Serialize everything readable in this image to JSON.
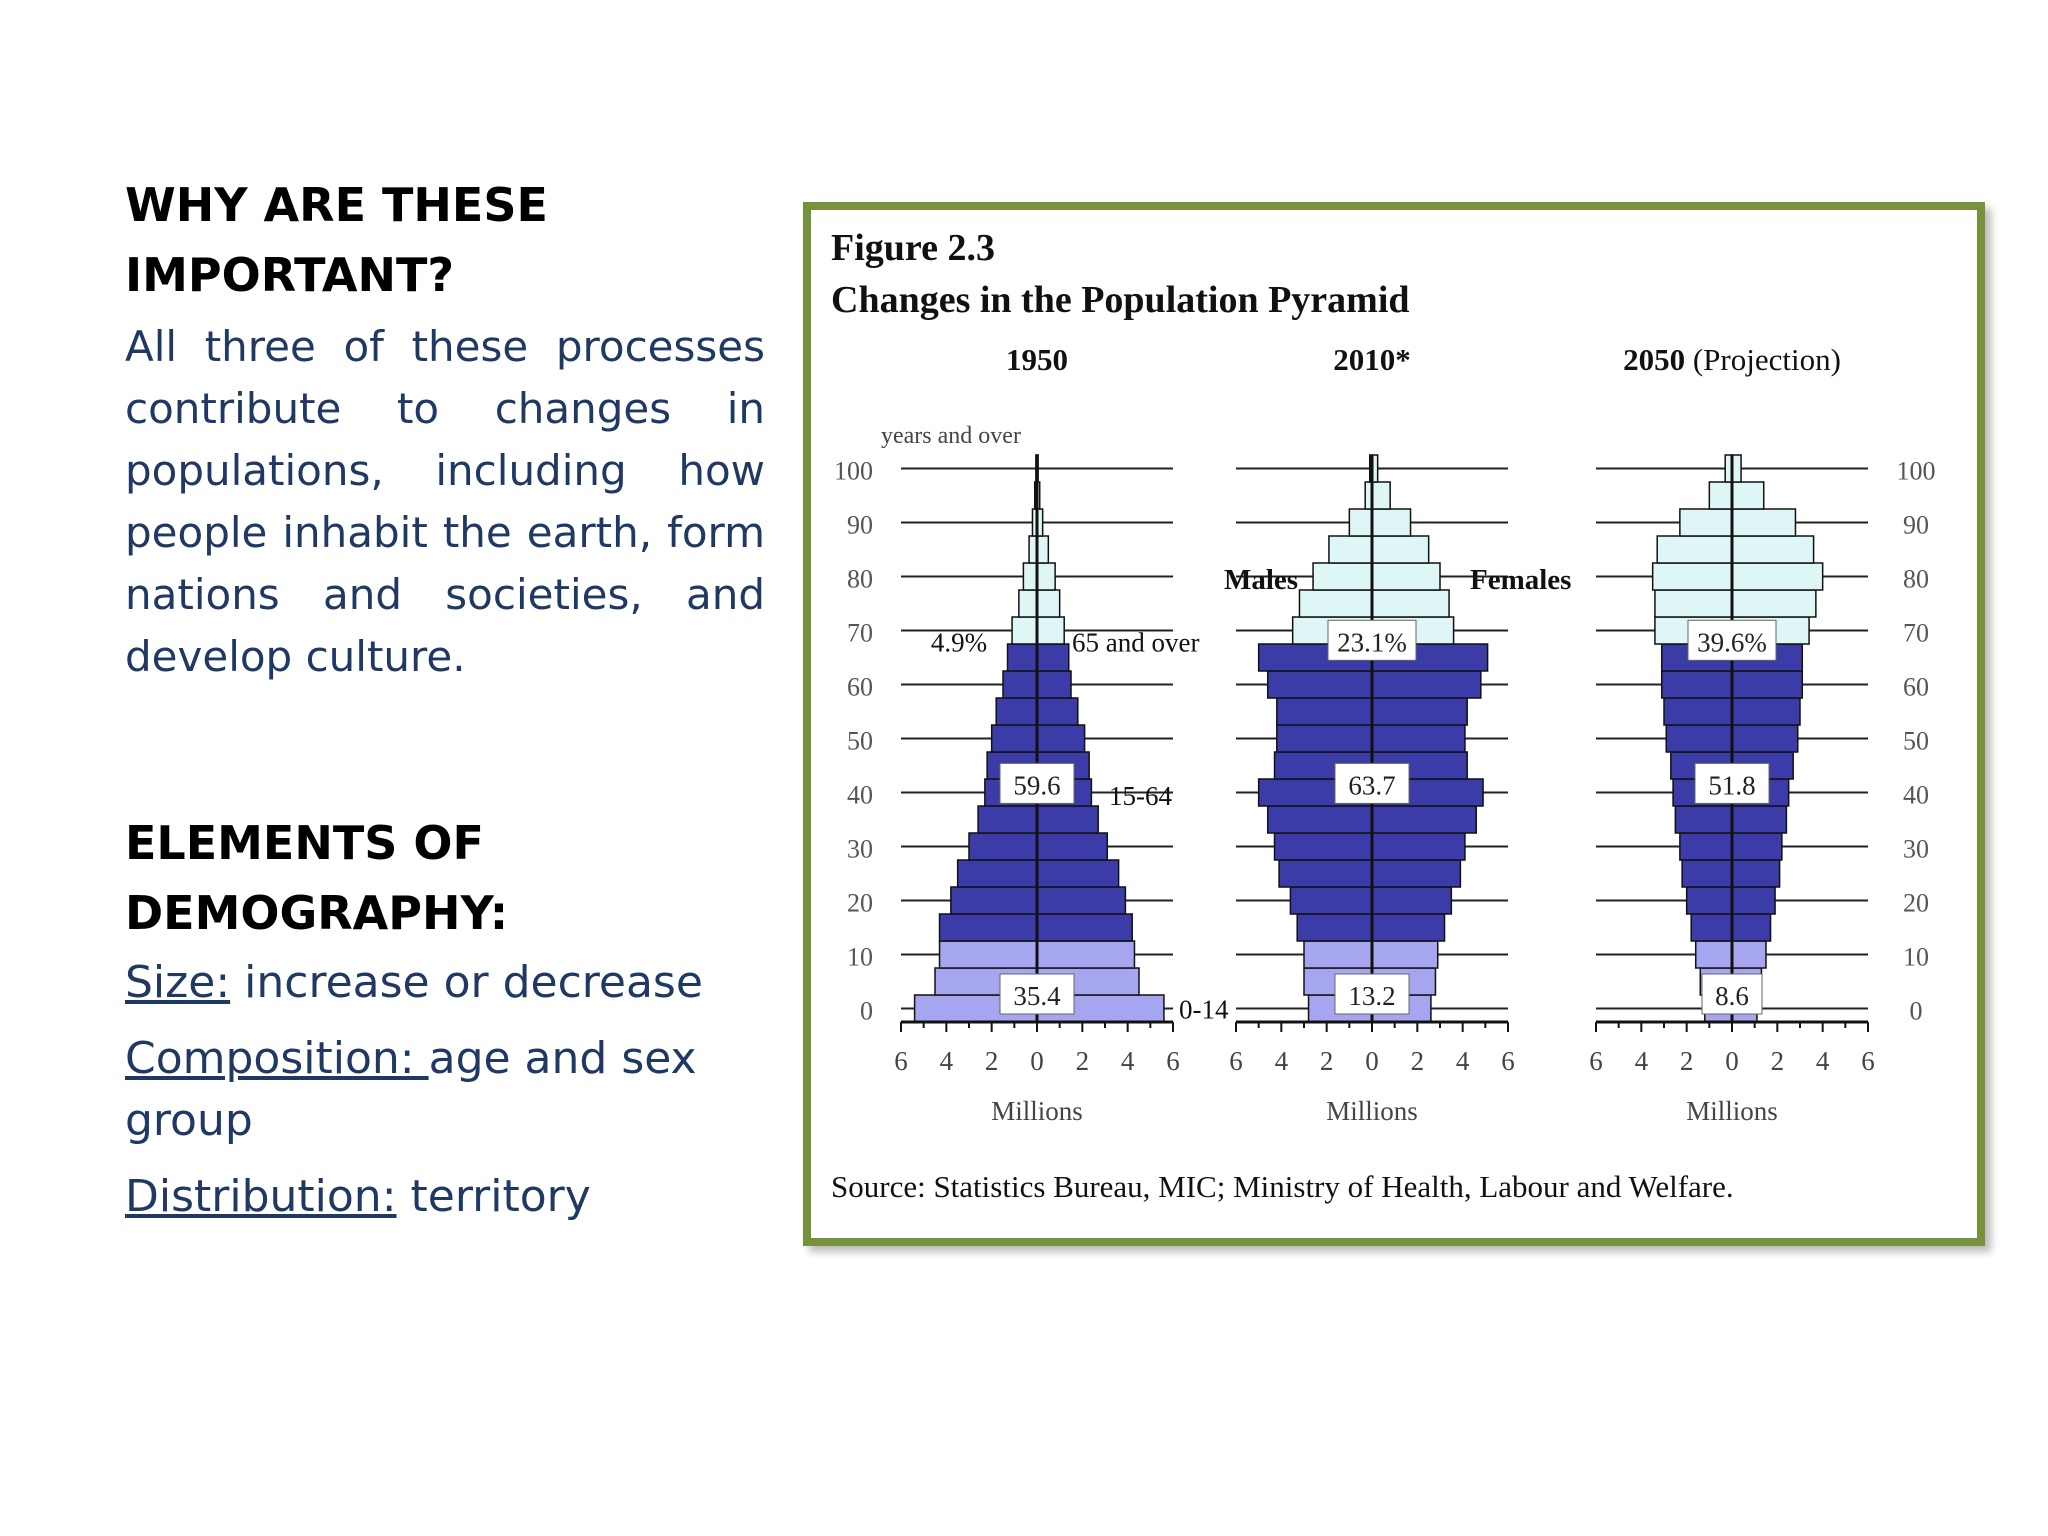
{
  "left": {
    "heading1": "WHY ARE THESE IMPORTANT?",
    "paragraph": "All three of these processes contribute to changes in populations, including how people inhabit the earth, form nations and societies, and develop culture.",
    "heading2": "ELEMENTS OF DEMOGRAPHY:",
    "elements": [
      {
        "label": "Size:",
        "text": " increase or decrease"
      },
      {
        "label": "Composition: ",
        "text": "age and sex group"
      },
      {
        "label": "Distribution:",
        "text": " territory"
      }
    ]
  },
  "figure": {
    "number": "Figure 2.3",
    "title": "Changes in the Population Pyramid",
    "source": "Source:  Statistics Bureau, MIC;  Ministry of Health, Labour and Welfare.",
    "colors": {
      "frame": "#76923c",
      "young": "#a6a6f0",
      "working": "#3c3ca8",
      "old": "#dff6f6"
    }
  },
  "chart_data": {
    "type": "bar",
    "subtype": "population-pyramid",
    "age_ticks": [
      "0",
      "10",
      "20",
      "30",
      "40",
      "50",
      "60",
      "70",
      "80",
      "90",
      "100"
    ],
    "age_top_label": "years and over",
    "x_ticks": [
      "6",
      "4",
      "2",
      "0",
      "2",
      "4",
      "6"
    ],
    "xlabel": "Millions",
    "xlim": [
      -6,
      6
    ],
    "sex_labels": {
      "male": "Males",
      "female": "Females"
    },
    "group_labels": {
      "old": "65 and over",
      "working": "15-64",
      "young": "0-14"
    },
    "panels": [
      {
        "year": "1950",
        "note": "",
        "shares": {
          "old": "4.9%",
          "working": "59.6",
          "young": "35.4"
        },
        "groups_by_band": [
          "young",
          "young",
          "young",
          "working",
          "working",
          "working",
          "working",
          "working",
          "working",
          "working",
          "working",
          "working",
          "working",
          "working",
          "old",
          "old",
          "old",
          "old",
          "old",
          "old",
          "old"
        ],
        "male": [
          5.4,
          4.5,
          4.3,
          4.3,
          3.8,
          3.5,
          3.0,
          2.6,
          2.3,
          2.2,
          2.0,
          1.8,
          1.5,
          1.3,
          1.1,
          0.8,
          0.6,
          0.35,
          0.2,
          0.1,
          0.05
        ],
        "female": [
          5.6,
          4.5,
          4.3,
          4.2,
          3.9,
          3.6,
          3.1,
          2.7,
          2.4,
          2.3,
          2.1,
          1.8,
          1.5,
          1.4,
          1.2,
          1.0,
          0.8,
          0.5,
          0.25,
          0.12,
          0.05
        ]
      },
      {
        "year": "2010",
        "note": "*",
        "shares": {
          "old": "23.1%",
          "working": "63.7",
          "young": "13.2"
        },
        "groups_by_band": [
          "young",
          "young",
          "young",
          "working",
          "working",
          "working",
          "working",
          "working",
          "working",
          "working",
          "working",
          "working",
          "working",
          "working",
          "old",
          "old",
          "old",
          "old",
          "old",
          "old",
          "old"
        ],
        "male": [
          2.8,
          3.0,
          3.0,
          3.3,
          3.6,
          4.1,
          4.3,
          4.6,
          5.0,
          4.3,
          4.2,
          4.2,
          4.6,
          5.0,
          3.5,
          3.2,
          2.6,
          1.9,
          1.0,
          0.3,
          0.1
        ],
        "female": [
          2.6,
          2.8,
          2.9,
          3.2,
          3.5,
          3.9,
          4.1,
          4.6,
          4.9,
          4.2,
          4.1,
          4.2,
          4.8,
          5.1,
          3.6,
          3.4,
          3.0,
          2.5,
          1.7,
          0.8,
          0.25
        ]
      },
      {
        "year": "2050",
        "note": "(Projection)",
        "shares": {
          "old": "39.6%",
          "working": "51.8",
          "young": "8.6"
        },
        "groups_by_band": [
          "young",
          "young",
          "young",
          "working",
          "working",
          "working",
          "working",
          "working",
          "working",
          "working",
          "working",
          "working",
          "working",
          "working",
          "old",
          "old",
          "old",
          "old",
          "old",
          "old",
          "old"
        ],
        "male": [
          1.2,
          1.4,
          1.6,
          1.8,
          2.0,
          2.2,
          2.3,
          2.5,
          2.6,
          2.7,
          2.9,
          3.0,
          3.1,
          3.1,
          3.4,
          3.4,
          3.5,
          3.3,
          2.3,
          1.0,
          0.3
        ],
        "female": [
          1.1,
          1.3,
          1.5,
          1.7,
          1.9,
          2.1,
          2.2,
          2.4,
          2.5,
          2.7,
          2.9,
          3.0,
          3.1,
          3.1,
          3.4,
          3.7,
          4.0,
          3.6,
          2.8,
          1.4,
          0.4
        ]
      }
    ]
  }
}
